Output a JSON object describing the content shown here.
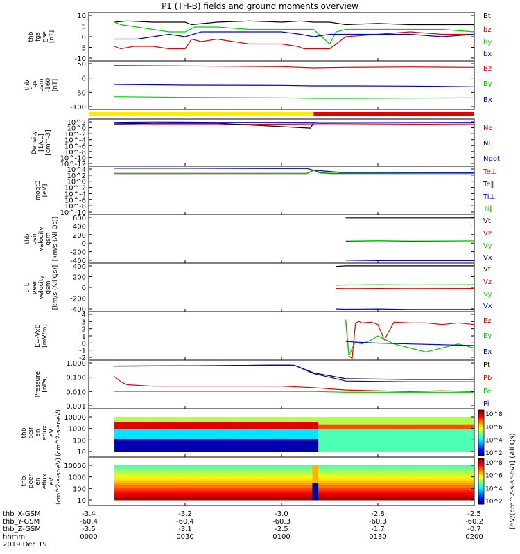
{
  "title": "P1 (TH-B) fields and ground moments overview",
  "date": "2019 Dec 19",
  "footer": {
    "rows": [
      {
        "label": "thb_X-GSM",
        "values": [
          "-3.4",
          "-3.2",
          "-3.0",
          "-2.8",
          "-2.5"
        ]
      },
      {
        "label": "thb_Y-GSM",
        "values": [
          "-60.4",
          "-60.4",
          "-60.3",
          "-60.3",
          "-60.2"
        ]
      },
      {
        "label": "thb_Z-GSM",
        "values": [
          "-3.5",
          "-3.1",
          "-2.5",
          "-1.7",
          "-0.7"
        ]
      },
      {
        "label": "hhmm",
        "values": [
          "0000",
          "0030",
          "0100",
          "0130",
          "0200"
        ]
      }
    ]
  },
  "mode_bar": {
    "colors": [
      "#ffee00",
      "#e00000"
    ],
    "switch_time_min": 70
  },
  "colors": {
    "black": "#000000",
    "red": "#e00000",
    "green": "#00cc00",
    "blue": "#0000d0"
  },
  "chart_data": [
    {
      "type": "line",
      "ylabel": [
        "thb",
        "fgs",
        "gse",
        "[nT]"
      ],
      "yticks": [
        "10",
        "5",
        "0",
        "-5",
        "-10"
      ],
      "ylim": [
        -10,
        10
      ],
      "series": [
        {
          "name": "Bt",
          "color": "#000000",
          "x": [
            8,
            12,
            20,
            30,
            32,
            40,
            50,
            60,
            66,
            70,
            75,
            80,
            90,
            100,
            110,
            120
          ],
          "y": [
            6,
            6.5,
            6,
            6,
            5,
            6,
            6.5,
            6,
            6.5,
            6,
            6,
            5,
            5.5,
            5,
            5,
            5
          ]
        },
        {
          "name": "bz",
          "color": "#e00000",
          "x": [
            8,
            10,
            14,
            20,
            25,
            30,
            32,
            35,
            40,
            50,
            60,
            65,
            67,
            70,
            75,
            80,
            90,
            100,
            110,
            120
          ],
          "y": [
            -4,
            -5,
            -4,
            -4,
            -5,
            -5,
            -1,
            -2,
            -1,
            -3,
            -3,
            -4,
            -5,
            -5,
            -5,
            0,
            1,
            2,
            1,
            1
          ]
        },
        {
          "name": "by",
          "color": "#00cc00",
          "x": [
            8,
            10,
            15,
            20,
            25,
            30,
            33,
            40,
            50,
            60,
            66,
            70,
            75,
            77,
            80,
            90,
            100,
            110,
            120
          ],
          "y": [
            6,
            5,
            4,
            3,
            2,
            2,
            4,
            4,
            3,
            3,
            3,
            3,
            -3,
            2,
            3,
            3,
            3,
            3,
            2
          ]
        },
        {
          "name": "bx",
          "color": "#0000d0",
          "x": [
            8,
            10,
            15,
            20,
            25,
            30,
            35,
            40,
            50,
            60,
            66,
            70,
            75,
            80,
            90,
            100,
            110,
            120
          ],
          "y": [
            -1,
            -1,
            -1,
            0,
            1,
            0,
            2,
            2,
            2,
            2,
            1,
            0,
            1,
            1,
            1,
            1,
            0,
            1
          ]
        }
      ]
    },
    {
      "type": "line",
      "ylabel": [
        "thb",
        "fgs",
        "gsm",
        "-160",
        "[nT]"
      ],
      "yticks": [
        "50",
        "0",
        "-50",
        "-100"
      ],
      "ylim": [
        -130,
        80
      ],
      "series": [
        {
          "name": "Bz",
          "color": "#e00000",
          "x": [
            8,
            30,
            60,
            70,
            80,
            100,
            120
          ],
          "y": [
            60,
            58,
            55,
            50,
            52,
            54,
            52
          ]
        },
        {
          "name": "By",
          "color": "#00cc00",
          "x": [
            8,
            30,
            60,
            70,
            80,
            100,
            120
          ],
          "y": [
            -75,
            -78,
            -80,
            -82,
            -82,
            -81,
            -80
          ]
        },
        {
          "name": "Bx",
          "color": "#0000d0",
          "x": [
            8,
            30,
            60,
            70,
            80,
            100,
            120
          ],
          "y": [
            -22,
            -25,
            -26,
            -28,
            -28,
            -29,
            -32
          ]
        }
      ]
    },
    {
      "type": "line",
      "scale": "log",
      "ylabel": [
        "Density",
        "[1/cc]",
        "[cm^-3]"
      ],
      "yticks": [
        "10^2",
        "10^0",
        "10^-2",
        "10^-4",
        "10^-6",
        "10^-8",
        "10^-10",
        "10^-12"
      ],
      "ylim": [
        -12.5,
        2
      ],
      "series": [
        {
          "name": "Ne",
          "color": "#e00000",
          "x": [
            8,
            20,
            40,
            70,
            72,
            120
          ],
          "y": [
            0.2,
            0.3,
            0.3,
            0.5,
            0.6,
            0.3
          ]
        },
        {
          "name": "Ni",
          "color": "#000000",
          "x": [
            8,
            20,
            40,
            69,
            70,
            71,
            120
          ],
          "y": [
            0.5,
            0.7,
            0.7,
            -0.8,
            0.8,
            0.9,
            0.8
          ]
        },
        {
          "name": "Npot",
          "color": "#0000d0",
          "x": [
            8,
            20,
            40,
            70,
            72,
            120
          ],
          "y": [
            1.0,
            1.1,
            1.0,
            1.0,
            0.9,
            1.0
          ]
        }
      ]
    },
    {
      "type": "line",
      "scale": "log",
      "ylabel": [
        "moqt3",
        "[eV]"
      ],
      "yticks": [
        "10^4",
        "10^2",
        "10^0",
        "10^-2",
        "10^-4",
        "10^-6",
        "10^-8",
        "10^-10"
      ],
      "ylim": [
        -10.5,
        4.2
      ],
      "series": [
        {
          "name": "Te⊥",
          "color": "#e00000",
          "x": [
            8,
            30,
            68,
            70,
            72,
            75,
            120
          ],
          "y": [
            2.0,
            2.0,
            2.0,
            3.0,
            2.2,
            2.0,
            2.0
          ]
        },
        {
          "name": "Te‖",
          "color": "#000000",
          "x": [
            8,
            30,
            68,
            70,
            72,
            75,
            120
          ],
          "y": [
            2.0,
            2.0,
            2.0,
            3.0,
            2.3,
            2.0,
            2.0
          ]
        },
        {
          "name": "Ti⊥",
          "color": "#0000d0",
          "x": [
            8,
            30,
            60,
            68,
            70,
            75,
            80,
            120
          ],
          "y": [
            3.6,
            3.6,
            3.5,
            3.5,
            3.0,
            2.6,
            2.2,
            2.2
          ]
        },
        {
          "name": "Ti‖",
          "color": "#00cc00",
          "x": [
            8,
            30,
            68,
            70,
            72,
            120
          ],
          "y": [
            2.0,
            2.0,
            2.0,
            2.9,
            2.1,
            2.0
          ]
        }
      ]
    },
    {
      "type": "line",
      "ylabel": [
        "thb",
        "peir",
        "velocity",
        "gsm",
        "[km/s (All Qs)]"
      ],
      "yticks": [
        "600",
        "400",
        "200",
        "0",
        "-200",
        "-400"
      ],
      "ylim": [
        -520,
        640
      ],
      "series": [
        {
          "name": "Vt",
          "color": "#000000",
          "x": [
            80,
            90,
            100,
            120
          ],
          "y": [
            560,
            560,
            560,
            560
          ]
        },
        {
          "name": "Vz",
          "color": "#e00000",
          "x": [
            80,
            90,
            100,
            120
          ],
          "y": [
            0,
            -10,
            0,
            -10
          ]
        },
        {
          "name": "Vy",
          "color": "#00cc00",
          "x": [
            80,
            90,
            100,
            120
          ],
          "y": [
            30,
            20,
            30,
            25
          ]
        },
        {
          "name": "Vx",
          "color": "#0000d0",
          "x": [
            80,
            90,
            100,
            120
          ],
          "y": [
            -450,
            -460,
            -460,
            -460
          ]
        }
      ]
    },
    {
      "type": "line",
      "ylabel": [
        "thb",
        "peer",
        "velocity",
        "gsm",
        "[km/s (All Qs)]"
      ],
      "yticks": [
        "400",
        "200",
        "0",
        "-200",
        "-400"
      ],
      "ylim": [
        -450,
        450
      ],
      "series": [
        {
          "name": "Vt",
          "color": "#000000",
          "x": [
            77,
            80,
            90,
            100,
            120
          ],
          "y": [
            390,
            400,
            400,
            400,
            400
          ]
        },
        {
          "name": "Vz",
          "color": "#e00000",
          "x": [
            77,
            80,
            90,
            100,
            120
          ],
          "y": [
            -20,
            -25,
            -20,
            -25,
            -20
          ]
        },
        {
          "name": "Vy",
          "color": "#00cc00",
          "x": [
            77,
            80,
            90,
            100,
            120
          ],
          "y": [
            40,
            45,
            50,
            45,
            50
          ]
        },
        {
          "name": "Vx",
          "color": "#0000d0",
          "x": [
            77,
            80,
            90,
            100,
            120
          ],
          "y": [
            -400,
            -405,
            -400,
            -410,
            -410
          ]
        }
      ]
    },
    {
      "type": "line",
      "ylabel": [
        "E=-VxB",
        "[mV/m]"
      ],
      "yticks": [
        "4",
        "3",
        "2",
        "1",
        "0",
        "-1",
        "-2"
      ],
      "ylim": [
        -2,
        4
      ],
      "series": [
        {
          "name": "Ez",
          "color": "#e00000",
          "x": [
            80,
            81,
            82,
            83,
            84,
            85,
            88,
            90,
            92,
            95,
            100,
            105,
            110,
            115,
            120
          ],
          "y": [
            2.8,
            -1.5,
            -1.8,
            2.5,
            2.8,
            2.6,
            2.7,
            2.4,
            0.5,
            2.7,
            2.6,
            2.6,
            2.4,
            2.6,
            2.4
          ]
        },
        {
          "name": "Ey",
          "color": "#00cc00",
          "x": [
            80,
            81,
            82,
            83,
            85,
            88,
            90,
            95,
            100,
            105,
            110,
            115,
            120
          ],
          "y": [
            3,
            -1.5,
            -0.5,
            0.2,
            0,
            0.5,
            1,
            0,
            -0.5,
            -1,
            -0.5,
            0,
            -0.5
          ]
        },
        {
          "name": "Ex",
          "color": "#0000d0",
          "x": [
            80,
            84,
            90,
            100,
            110,
            120
          ],
          "y": [
            0.3,
            0.2,
            0.1,
            0,
            -0.1,
            -0.2
          ]
        }
      ]
    },
    {
      "type": "line",
      "scale": "log",
      "ylabel": [
        "Pressure",
        "[nPa]"
      ],
      "yticks": [
        "1.000",
        "0.100",
        "0.010",
        "0.001"
      ],
      "ylim": [
        -3.1,
        0.15
      ],
      "series": [
        {
          "name": "Pt",
          "color": "#000000",
          "x": [
            8,
            20,
            40,
            60,
            64,
            70,
            80,
            100,
            120
          ],
          "y": [
            -0.25,
            -0.24,
            -0.22,
            -0.18,
            -0.2,
            -0.7,
            -1.1,
            -1.15,
            -1.15
          ]
        },
        {
          "name": "Pb",
          "color": "#e00000",
          "x": [
            8,
            10,
            12,
            20,
            40,
            60,
            70,
            80,
            90,
            100,
            110,
            120
          ],
          "y": [
            -0.95,
            -1.3,
            -1.5,
            -1.6,
            -1.6,
            -1.6,
            -1.7,
            -1.85,
            -1.9,
            -1.95,
            -1.9,
            -1.95
          ]
        },
        {
          "name": "Pe",
          "color": "#00cc00",
          "x": [
            8,
            40,
            70,
            80,
            120
          ],
          "y": [
            -1.95,
            -1.95,
            -1.95,
            -2.0,
            -2.0
          ]
        },
        {
          "name": "Pi",
          "color": "#0000d0",
          "x": [
            8,
            20,
            40,
            60,
            64,
            70,
            80,
            100,
            120
          ],
          "y": [
            -0.25,
            -0.24,
            -0.22,
            -0.18,
            -0.2,
            -0.75,
            -1.25,
            -1.3,
            -1.3
          ]
        }
      ]
    },
    {
      "type": "heatmap",
      "ylabel": [
        "thb",
        "peir",
        "en",
        "eflux",
        "eV",
        "(cm^2-s-sr-eV)"
      ],
      "yticks": [
        "10000",
        "1000",
        "100",
        "10"
      ],
      "ylim": [
        5,
        12000
      ],
      "colorbar_label": "[eV/(cm^2-s-sr-eV)] (All Qs)",
      "colorbar_ticks": [
        "10^8",
        "10^6",
        "10^4",
        "10^2"
      ]
    },
    {
      "type": "heatmap",
      "ylabel": [
        "thb",
        "peer",
        "en",
        "eflux",
        "eV",
        "(cm^2-s-sr-eV)"
      ],
      "yticks": [
        "10000",
        "1000",
        "100",
        "10"
      ],
      "ylim": [
        5,
        12000
      ],
      "colorbar_ticks": [
        "10^8",
        "10^6",
        "10^4",
        "10^2"
      ]
    }
  ]
}
